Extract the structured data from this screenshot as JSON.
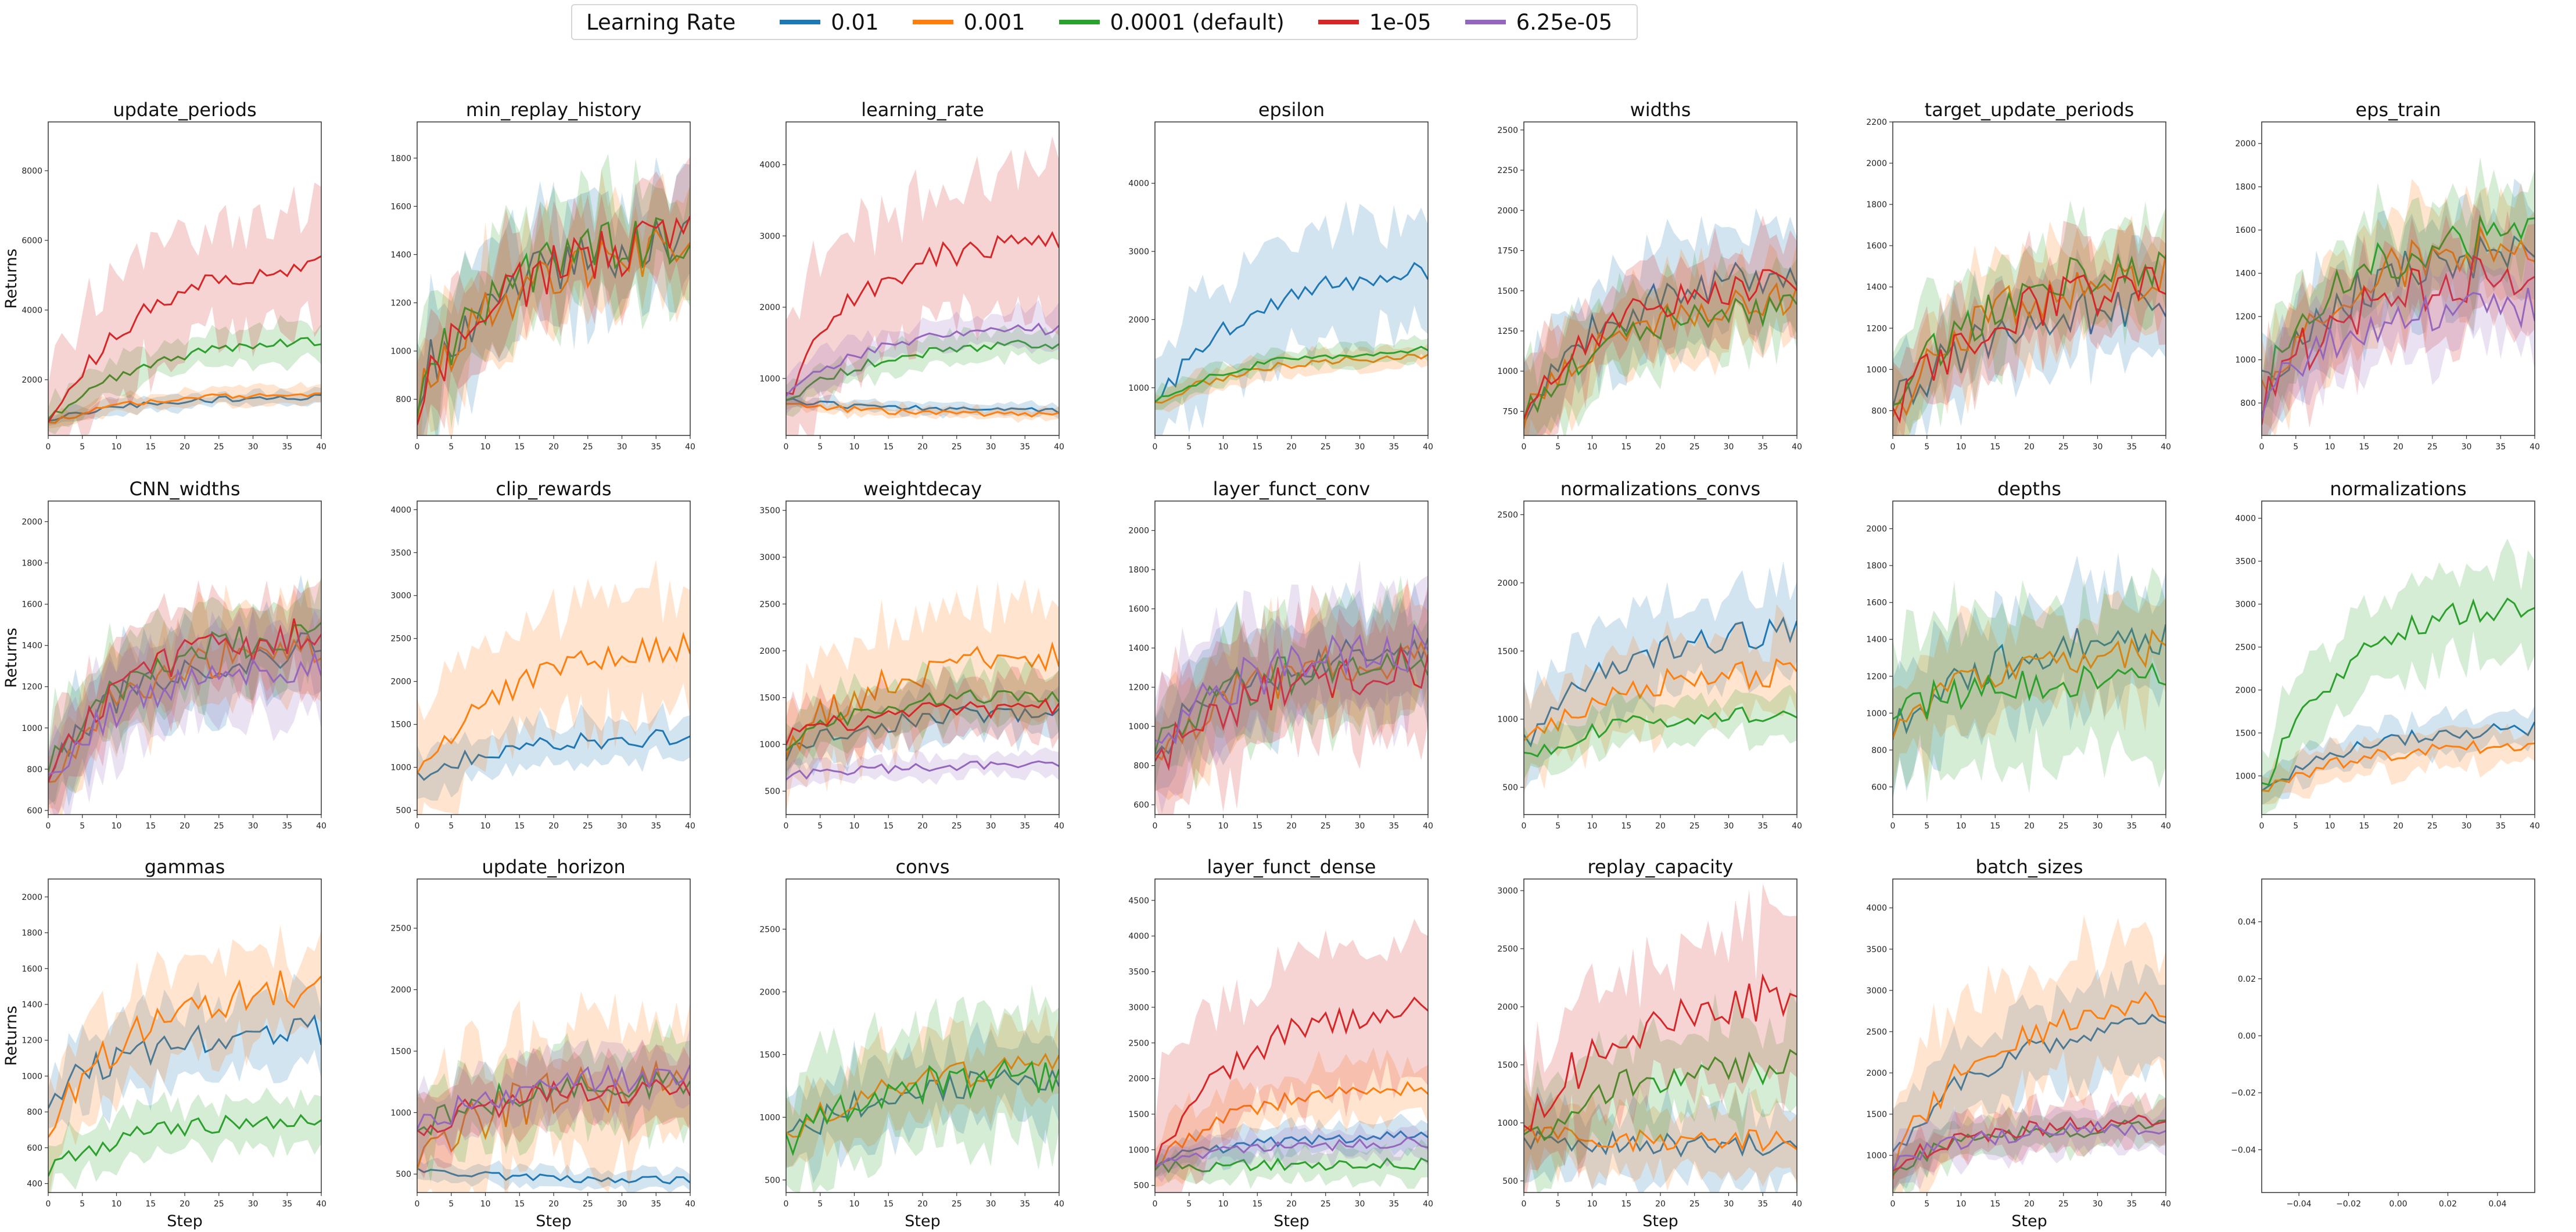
{
  "legend": {
    "title": "Learning Rate",
    "items": [
      {
        "label": "0.01",
        "color": "#1f77b4"
      },
      {
        "label": "0.001",
        "color": "#ff7f0e"
      },
      {
        "label": "0.0001 (default)",
        "color": "#2ca02c"
      },
      {
        "label": "1e-05",
        "color": "#d62728"
      },
      {
        "label": "6.25e-05",
        "color": "#9467bd"
      }
    ]
  },
  "chart_data": [
    {
      "type": "line",
      "title": "update_periods",
      "ylabel": "Returns",
      "xlabel": "",
      "xlim": [
        0,
        40
      ],
      "ylim": [
        400,
        9400
      ],
      "yticks": [
        2000,
        4000,
        6000,
        8000
      ],
      "series": [
        {
          "name": "0.01",
          "start": 800,
          "end": 1500,
          "band": 200,
          "noise": 80
        },
        {
          "name": "0.001",
          "start": 750,
          "end": 1600,
          "band": 250,
          "noise": 80
        },
        {
          "name": "0.0001 (default)",
          "start": 800,
          "end": 3100,
          "band": 500,
          "noise": 150
        },
        {
          "name": "1e-05",
          "start": 650,
          "end": 5300,
          "band": 1600,
          "noise": 300
        }
      ]
    },
    {
      "type": "line",
      "title": "min_replay_history",
      "ylabel": "",
      "xlabel": "",
      "xlim": [
        0,
        40
      ],
      "ylim": [
        650,
        1950
      ],
      "yticks": [
        800,
        1000,
        1200,
        1400,
        1600,
        1800
      ],
      "series": [
        {
          "name": "0.01",
          "start": 850,
          "end": 1450,
          "band": 220,
          "noise": 110
        },
        {
          "name": "0.001",
          "start": 800,
          "end": 1420,
          "band": 220,
          "noise": 110
        },
        {
          "name": "0.0001 (default)",
          "start": 820,
          "end": 1480,
          "band": 220,
          "noise": 110
        },
        {
          "name": "1e-05",
          "start": 780,
          "end": 1450,
          "band": 200,
          "noise": 110
        }
      ]
    },
    {
      "type": "line",
      "title": "learning_rate",
      "ylabel": "",
      "xlabel": "",
      "xlim": [
        0,
        40
      ],
      "ylim": [
        200,
        4600
      ],
      "yticks": [
        1000,
        2000,
        3000,
        4000
      ],
      "series": [
        {
          "name": "0.01",
          "start": 700,
          "end": 550,
          "band": 80,
          "noise": 40
        },
        {
          "name": "0.001",
          "start": 650,
          "end": 500,
          "band": 80,
          "noise": 40
        },
        {
          "name": "0.0001 (default)",
          "start": 700,
          "end": 1500,
          "band": 200,
          "noise": 80
        },
        {
          "name": "1e-05",
          "start": 800,
          "end": 3000,
          "band": 1000,
          "noise": 200
        },
        {
          "name": "6.25e-05",
          "start": 750,
          "end": 1700,
          "band": 250,
          "noise": 80
        }
      ]
    },
    {
      "type": "line",
      "title": "epsilon",
      "ylabel": "",
      "xlabel": "",
      "xlim": [
        0,
        40
      ],
      "ylim": [
        300,
        4900
      ],
      "yticks": [
        1000,
        2000,
        3000,
        4000
      ],
      "series": [
        {
          "name": "0.01",
          "start": 700,
          "end": 2700,
          "band": 800,
          "noise": 150
        },
        {
          "name": "0.001",
          "start": 750,
          "end": 1450,
          "band": 150,
          "noise": 60
        },
        {
          "name": "0.0001 (default)",
          "start": 750,
          "end": 1550,
          "band": 150,
          "noise": 60
        }
      ]
    },
    {
      "type": "line",
      "title": "widths",
      "ylabel": "",
      "xlabel": "",
      "xlim": [
        0,
        40
      ],
      "ylim": [
        600,
        2550
      ],
      "yticks": [
        750,
        1000,
        1250,
        1500,
        1750,
        2000,
        2250,
        2500
      ],
      "series": [
        {
          "name": "0.01",
          "start": 750,
          "end": 1600,
          "band": 300,
          "noise": 120
        },
        {
          "name": "0.001",
          "start": 700,
          "end": 1450,
          "band": 250,
          "noise": 100
        },
        {
          "name": "0.0001 (default)",
          "start": 750,
          "end": 1400,
          "band": 250,
          "noise": 100
        },
        {
          "name": "1e-05",
          "start": 750,
          "end": 1550,
          "band": 250,
          "noise": 100
        }
      ]
    },
    {
      "type": "line",
      "title": "target_update_periods",
      "ylabel": "",
      "xlabel": "",
      "xlim": [
        0,
        40
      ],
      "ylim": [
        680,
        2200
      ],
      "yticks": [
        800,
        1000,
        1200,
        1400,
        1600,
        1800,
        2000,
        2200
      ],
      "series": [
        {
          "name": "0.01",
          "start": 800,
          "end": 1300,
          "band": 200,
          "noise": 110
        },
        {
          "name": "0.001",
          "start": 750,
          "end": 1450,
          "band": 220,
          "noise": 110
        },
        {
          "name": "0.0001 (default)",
          "start": 800,
          "end": 1500,
          "band": 220,
          "noise": 110
        },
        {
          "name": "1e-05",
          "start": 780,
          "end": 1400,
          "band": 200,
          "noise": 110
        }
      ]
    },
    {
      "type": "line",
      "title": "eps_train",
      "ylabel": "",
      "xlabel": "",
      "xlim": [
        0,
        40
      ],
      "ylim": [
        650,
        2100
      ],
      "yticks": [
        800,
        1000,
        1200,
        1400,
        1600,
        1800,
        2000
      ],
      "series": [
        {
          "name": "0.01",
          "start": 850,
          "end": 1500,
          "band": 200,
          "noise": 110
        },
        {
          "name": "0.001",
          "start": 800,
          "end": 1550,
          "band": 220,
          "noise": 110
        },
        {
          "name": "0.0001 (default)",
          "start": 850,
          "end": 1600,
          "band": 200,
          "noise": 110
        },
        {
          "name": "1e-05",
          "start": 800,
          "end": 1400,
          "band": 200,
          "noise": 110
        },
        {
          "name": "6.25e-05",
          "start": 800,
          "end": 1250,
          "band": 180,
          "noise": 90
        }
      ]
    },
    {
      "type": "line",
      "title": "CNN_widths",
      "ylabel": "Returns",
      "xlabel": "",
      "xlim": [
        0,
        40
      ],
      "ylim": [
        580,
        2100
      ],
      "yticks": [
        600,
        800,
        1000,
        1200,
        1400,
        1600,
        1800,
        2000
      ],
      "series": [
        {
          "name": "0.01",
          "start": 780,
          "end": 1380,
          "band": 200,
          "noise": 90
        },
        {
          "name": "0.001",
          "start": 760,
          "end": 1400,
          "band": 200,
          "noise": 90
        },
        {
          "name": "0.0001 (default)",
          "start": 800,
          "end": 1450,
          "band": 200,
          "noise": 90
        },
        {
          "name": "1e-05",
          "start": 750,
          "end": 1450,
          "band": 220,
          "noise": 100
        },
        {
          "name": "6.25e-05",
          "start": 780,
          "end": 1300,
          "band": 200,
          "noise": 80
        }
      ]
    },
    {
      "type": "line",
      "title": "clip_rewards",
      "ylabel": "",
      "xlabel": "",
      "xlim": [
        0,
        40
      ],
      "ylim": [
        450,
        4100
      ],
      "yticks": [
        500,
        1000,
        1500,
        2000,
        2500,
        3000,
        3500,
        4000
      ],
      "series": [
        {
          "name": "0.01",
          "start": 900,
          "end": 1350,
          "band": 250,
          "noise": 100
        },
        {
          "name": "0.001",
          "start": 850,
          "end": 2400,
          "band": 700,
          "noise": 150
        }
      ]
    },
    {
      "type": "line",
      "title": "weightdecay",
      "ylabel": "",
      "xlabel": "",
      "xlim": [
        0,
        40
      ],
      "ylim": [
        250,
        3600
      ],
      "yticks": [
        500,
        1000,
        1500,
        2000,
        2500,
        3000,
        3500
      ],
      "series": [
        {
          "name": "0.01",
          "start": 900,
          "end": 1350,
          "band": 250,
          "noise": 100
        },
        {
          "name": "0.001",
          "start": 1000,
          "end": 1900,
          "band": 600,
          "noise": 200
        },
        {
          "name": "0.0001 (default)",
          "start": 1000,
          "end": 1550,
          "band": 300,
          "noise": 100
        },
        {
          "name": "1e-05",
          "start": 1050,
          "end": 1400,
          "band": 300,
          "noise": 100
        },
        {
          "name": "6.25e-05",
          "start": 650,
          "end": 780,
          "band": 120,
          "noise": 50
        }
      ]
    },
    {
      "type": "line",
      "title": "layer_funct_conv",
      "ylabel": "",
      "xlabel": "",
      "xlim": [
        0,
        40
      ],
      "ylim": [
        550,
        2150
      ],
      "yticks": [
        600,
        800,
        1000,
        1200,
        1400,
        1600,
        1800,
        2000
      ],
      "series": [
        {
          "name": "0.01",
          "start": 850,
          "end": 1400,
          "band": 250,
          "noise": 110
        },
        {
          "name": "0.001",
          "start": 850,
          "end": 1350,
          "band": 250,
          "noise": 110
        },
        {
          "name": "0.0001 (default)",
          "start": 850,
          "end": 1350,
          "band": 250,
          "noise": 110
        },
        {
          "name": "1e-05",
          "start": 800,
          "end": 1300,
          "band": 300,
          "noise": 120
        },
        {
          "name": "6.25e-05",
          "start": 900,
          "end": 1400,
          "band": 300,
          "noise": 120
        }
      ]
    },
    {
      "type": "line",
      "title": "normalizations_convs",
      "ylabel": "",
      "xlabel": "",
      "xlim": [
        0,
        40
      ],
      "ylim": [
        300,
        2600
      ],
      "yticks": [
        500,
        1000,
        1500,
        2000,
        2500
      ],
      "series": [
        {
          "name": "0.01",
          "start": 800,
          "end": 1650,
          "band": 300,
          "noise": 110
        },
        {
          "name": "0.001",
          "start": 750,
          "end": 1350,
          "band": 300,
          "noise": 110
        },
        {
          "name": "0.0001 (default)",
          "start": 700,
          "end": 1050,
          "band": 150,
          "noise": 60
        }
      ]
    },
    {
      "type": "line",
      "title": "depths",
      "ylabel": "",
      "xlabel": "",
      "xlim": [
        0,
        40
      ],
      "ylim": [
        450,
        2150
      ],
      "yticks": [
        600,
        800,
        1000,
        1200,
        1400,
        1600,
        1800,
        2000
      ],
      "series": [
        {
          "name": "0.01",
          "start": 900,
          "end": 1400,
          "band": 300,
          "noise": 100
        },
        {
          "name": "0.001",
          "start": 900,
          "end": 1350,
          "band": 250,
          "noise": 100
        },
        {
          "name": "0.0001 (default)",
          "start": 1000,
          "end": 1200,
          "band": 400,
          "noise": 100
        }
      ]
    },
    {
      "type": "line",
      "title": "normalizations",
      "ylabel": "",
      "xlabel": "",
      "xlim": [
        0,
        40
      ],
      "ylim": [
        550,
        4200
      ],
      "yticks": [
        1000,
        1500,
        2000,
        2500,
        3000,
        3500,
        4000
      ],
      "series": [
        {
          "name": "0.01",
          "start": 800,
          "end": 1550,
          "band": 200,
          "noise": 80
        },
        {
          "name": "0.001",
          "start": 800,
          "end": 1350,
          "band": 200,
          "noise": 80
        },
        {
          "name": "0.0001 (default)",
          "start": 850,
          "end": 3000,
          "band": 500,
          "noise": 150
        }
      ]
    },
    {
      "type": "line",
      "title": "gammas",
      "ylabel": "Returns",
      "xlabel": "Step",
      "xlim": [
        0,
        40
      ],
      "ylim": [
        350,
        2100
      ],
      "yticks": [
        400,
        600,
        800,
        1000,
        1200,
        1400,
        1600,
        1800,
        2000
      ],
      "series": [
        {
          "name": "0.01",
          "start": 900,
          "end": 1250,
          "band": 200,
          "noise": 90
        },
        {
          "name": "0.001",
          "start": 750,
          "end": 1500,
          "band": 250,
          "noise": 110
        },
        {
          "name": "0.0001 (default)",
          "start": 480,
          "end": 760,
          "band": 120,
          "noise": 50
        }
      ]
    },
    {
      "type": "line",
      "title": "update_horizon",
      "ylabel": "",
      "xlabel": "Step",
      "xlim": [
        0,
        40
      ],
      "ylim": [
        350,
        2900
      ],
      "yticks": [
        500,
        1000,
        1500,
        2000,
        2500
      ],
      "series": [
        {
          "name": "0.01",
          "start": 550,
          "end": 450,
          "band": 70,
          "noise": 30
        },
        {
          "name": "0.001",
          "start": 550,
          "end": 1250,
          "band": 500,
          "noise": 200
        },
        {
          "name": "0.0001 (default)",
          "start": 850,
          "end": 1250,
          "band": 300,
          "noise": 120
        },
        {
          "name": "1e-05",
          "start": 850,
          "end": 1200,
          "band": 250,
          "noise": 110
        },
        {
          "name": "6.25e-05",
          "start": 850,
          "end": 1300,
          "band": 250,
          "noise": 110
        }
      ]
    },
    {
      "type": "line",
      "title": "convs",
      "ylabel": "",
      "xlabel": "Step",
      "xlim": [
        0,
        40
      ],
      "ylim": [
        400,
        2900
      ],
      "yticks": [
        500,
        1000,
        1500,
        2000,
        2500
      ],
      "series": [
        {
          "name": "0.01",
          "start": 800,
          "end": 1300,
          "band": 300,
          "noise": 110
        },
        {
          "name": "0.001",
          "start": 800,
          "end": 1400,
          "band": 300,
          "noise": 110
        },
        {
          "name": "0.0001 (default)",
          "start": 750,
          "end": 1350,
          "band": 450,
          "noise": 150
        }
      ]
    },
    {
      "type": "line",
      "title": "layer_funct_dense",
      "ylabel": "",
      "xlabel": "Step",
      "xlim": [
        0,
        40
      ],
      "ylim": [
        400,
        4800
      ],
      "yticks": [
        500,
        1000,
        1500,
        2000,
        2500,
        3000,
        3500,
        4000,
        4500
      ],
      "series": [
        {
          "name": "0.01",
          "start": 800,
          "end": 1200,
          "band": 200,
          "noise": 80
        },
        {
          "name": "0.001",
          "start": 800,
          "end": 1900,
          "band": 400,
          "noise": 120
        },
        {
          "name": "0.0001 (default)",
          "start": 750,
          "end": 800,
          "band": 200,
          "noise": 80
        },
        {
          "name": "1e-05",
          "start": 850,
          "end": 3000,
          "band": 900,
          "noise": 200
        },
        {
          "name": "6.25e-05",
          "start": 800,
          "end": 1100,
          "band": 200,
          "noise": 80
        }
      ]
    },
    {
      "type": "line",
      "title": "replay_capacity",
      "ylabel": "",
      "xlabel": "Step",
      "xlim": [
        0,
        40
      ],
      "ylim": [
        400,
        3100
      ],
      "yticks": [
        500,
        1000,
        1500,
        2000,
        2500,
        3000
      ],
      "series": [
        {
          "name": "0.01",
          "start": 850,
          "end": 800,
          "band": 300,
          "noise": 100
        },
        {
          "name": "0.001",
          "start": 900,
          "end": 850,
          "band": 300,
          "noise": 100
        },
        {
          "name": "0.0001 (default)",
          "start": 850,
          "end": 1500,
          "band": 400,
          "noise": 150
        },
        {
          "name": "1e-05",
          "start": 900,
          "end": 2100,
          "band": 600,
          "noise": 200
        }
      ]
    },
    {
      "type": "line",
      "title": "batch_sizes",
      "ylabel": "",
      "xlabel": "Step",
      "xlim": [
        0,
        40
      ],
      "ylim": [
        550,
        4350
      ],
      "yticks": [
        1000,
        1500,
        2000,
        2500,
        3000,
        3500,
        4000
      ],
      "series": [
        {
          "name": "0.01",
          "start": 900,
          "end": 2600,
          "band": 500,
          "noise": 150
        },
        {
          "name": "0.001",
          "start": 900,
          "end": 2800,
          "band": 800,
          "noise": 200
        },
        {
          "name": "0.0001 (default)",
          "start": 850,
          "end": 1350,
          "band": 250,
          "noise": 100
        },
        {
          "name": "1e-05",
          "start": 900,
          "end": 1400,
          "band": 250,
          "noise": 100
        },
        {
          "name": "6.25e-05",
          "start": 900,
          "end": 1350,
          "band": 250,
          "noise": 100
        }
      ]
    },
    {
      "type": "empty",
      "title": "",
      "ylabel": "",
      "xlabel": "",
      "xlim": [
        -0.055,
        0.055
      ],
      "ylim": [
        -0.055,
        0.055
      ],
      "yticks": [
        -0.04,
        -0.02,
        0.0,
        0.02,
        0.04
      ],
      "xticks": [
        -0.04,
        -0.02,
        0.0,
        0.02,
        0.04
      ],
      "yticklabels": [
        "−0.04",
        "−0.02",
        "0.00",
        "0.02",
        "0.04"
      ],
      "xticklabels": [
        "−0.04",
        "−0.02",
        "0.00",
        "0.02",
        "0.04"
      ],
      "series": []
    }
  ]
}
